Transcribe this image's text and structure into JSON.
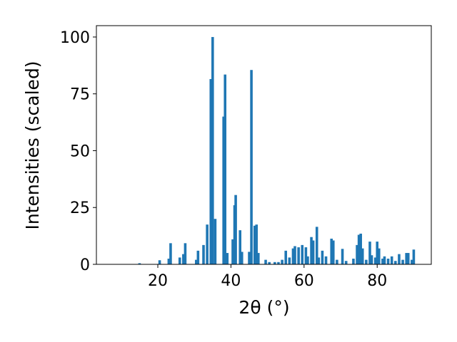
{
  "chart_data": {
    "type": "bar",
    "xlabel": "2θ (°)",
    "ylabel": "Intensities (scaled)",
    "color": "#1f77b4",
    "x": [
      15.0,
      20.5,
      23.0,
      23.5,
      26.0,
      27.0,
      27.5,
      30.5,
      31.0,
      32.5,
      33.5,
      34.5,
      35.0,
      35.7,
      38.0,
      38.4,
      39.0,
      40.5,
      41.0,
      41.3,
      42.5,
      43.0,
      45.0,
      45.6,
      46.5,
      47.0,
      47.5,
      49.5,
      50.5,
      52.0,
      53.0,
      54.0,
      55.0,
      56.0,
      57.0,
      57.5,
      58.5,
      59.5,
      60.5,
      61.0,
      62.0,
      62.5,
      63.5,
      64.0,
      65.0,
      66.0,
      67.5,
      68.0,
      69.0,
      70.5,
      71.5,
      73.5,
      74.5,
      75.0,
      75.5,
      76.0,
      77.0,
      78.0,
      78.5,
      79.5,
      80.0,
      80.5,
      81.5,
      82.0,
      83.0,
      84.0,
      85.0,
      86.0,
      87.0,
      88.0,
      88.5,
      89.5,
      90.0
    ],
    "values": [
      0.5,
      1.8,
      2.5,
      9.3,
      3,
      4.5,
      9.3,
      2,
      6,
      8.5,
      17.5,
      81.5,
      100,
      20,
      65,
      83.5,
      5,
      11,
      26,
      30.5,
      15,
      5.5,
      5.5,
      85.5,
      17,
      17.5,
      5,
      2,
      1,
      1,
      1,
      2,
      6,
      3,
      7,
      8,
      7.5,
      8.5,
      7.5,
      3.5,
      12,
      10.5,
      16.5,
      3,
      6,
      3.5,
      11.3,
      10.5,
      2,
      6.8,
      1.5,
      2.5,
      8.5,
      13,
      13.5,
      7,
      2,
      10,
      4,
      3,
      10,
      7,
      2.5,
      3.5,
      2.5,
      3.5,
      1.5,
      4.5,
      2,
      5,
      5,
      2,
      6.5
    ],
    "xlim": [
      3.2,
      94.8
    ],
    "ylim": [
      0,
      105
    ],
    "xticks": [
      20,
      40,
      60,
      80
    ],
    "yticks": [
      0,
      25,
      50,
      75,
      100
    ]
  }
}
